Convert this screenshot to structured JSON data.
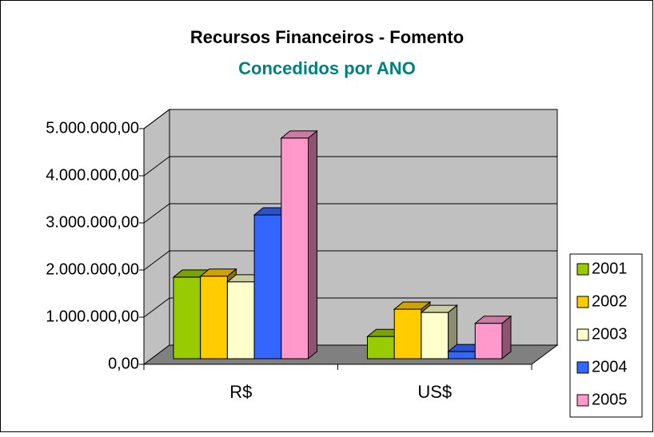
{
  "chart_data": {
    "type": "bar3d",
    "title": "Recursos Financeiros - Fomento",
    "subtitle": "Concedidos por ANO",
    "categories": [
      "R$",
      "US$"
    ],
    "series": [
      {
        "name": "2001",
        "color": "#99cc00",
        "values": [
          1730000,
          470000
        ]
      },
      {
        "name": "2002",
        "color": "#ffcc00",
        "values": [
          1750000,
          1050000
        ]
      },
      {
        "name": "2003",
        "color": "#ffffcc",
        "values": [
          1630000,
          980000
        ]
      },
      {
        "name": "2004",
        "color": "#3366ff",
        "values": [
          3050000,
          150000
        ]
      },
      {
        "name": "2005",
        "color": "#ff99cc",
        "values": [
          4680000,
          750000
        ]
      }
    ],
    "ylim": [
      0,
      5000000
    ],
    "yticks": [
      {
        "value": 0,
        "label": "0,00"
      },
      {
        "value": 1000000,
        "label": "1.000.000,00"
      },
      {
        "value": 2000000,
        "label": "2.000.000,00"
      },
      {
        "value": 3000000,
        "label": "3.000.000,00"
      },
      {
        "value": 4000000,
        "label": "4.000.000,00"
      },
      {
        "value": 5000000,
        "label": "5.000.000,00"
      }
    ],
    "grid": true,
    "legend": "right"
  }
}
